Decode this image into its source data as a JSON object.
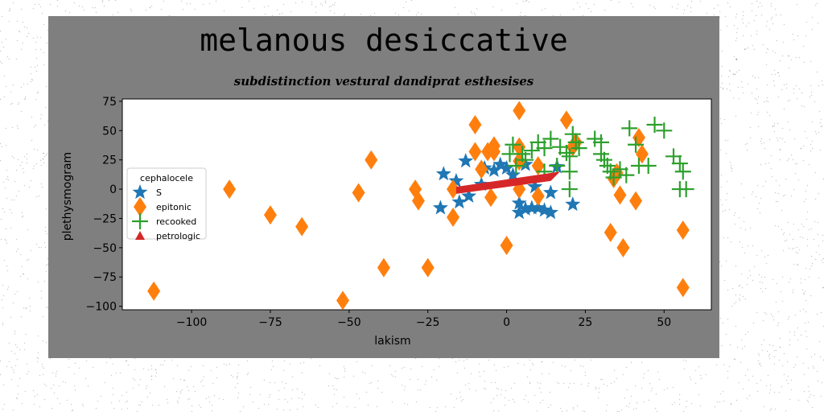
{
  "chart_data": {
    "type": "scatter",
    "title": "melanous desiccative",
    "subtitle": "subdistinction vestural dandiprat esthesises",
    "xlabel": "lakism",
    "ylabel": "plethysmogram",
    "xlim": [
      -122,
      65
    ],
    "ylim": [
      -103,
      77
    ],
    "xticks": [
      -100,
      -75,
      -50,
      -25,
      0,
      25,
      50
    ],
    "yticks": [
      75,
      50,
      25,
      0,
      -25,
      -50,
      -75,
      -100
    ],
    "grid": false,
    "legend": {
      "title": "cephalocele",
      "placement": "center-left"
    },
    "series": [
      {
        "name": "S",
        "marker": "star",
        "color": "#1f77b4",
        "points": [
          [
            -20,
            13
          ],
          [
            -16,
            7
          ],
          [
            -13,
            24
          ],
          [
            -21,
            -16
          ],
          [
            -15,
            -11
          ],
          [
            -12,
            -6
          ],
          [
            -7,
            18
          ],
          [
            -4,
            16
          ],
          [
            -2,
            21
          ],
          [
            0,
            18
          ],
          [
            2,
            12
          ],
          [
            4,
            -12
          ],
          [
            4,
            -20
          ],
          [
            6,
            21
          ],
          [
            6,
            -17
          ],
          [
            8,
            -16
          ],
          [
            10,
            -16
          ],
          [
            12,
            -18
          ],
          [
            14,
            -20
          ],
          [
            14,
            -3
          ],
          [
            16,
            19
          ],
          [
            21,
            -13
          ],
          [
            -8,
            4
          ],
          [
            9,
            2
          ]
        ]
      },
      {
        "name": "epitonic",
        "marker": "diamond",
        "color": "#ff7f0e",
        "points": [
          [
            -112,
            -87
          ],
          [
            -88,
            0
          ],
          [
            -75,
            -22
          ],
          [
            -65,
            -32
          ],
          [
            -52,
            -95
          ],
          [
            -47,
            -3
          ],
          [
            -43,
            25
          ],
          [
            -39,
            -67
          ],
          [
            -29,
            0
          ],
          [
            -28,
            -10
          ],
          [
            -25,
            -67
          ],
          [
            -17,
            -24
          ],
          [
            -17,
            0
          ],
          [
            -10,
            55
          ],
          [
            -10,
            32
          ],
          [
            -8,
            17
          ],
          [
            -6,
            32
          ],
          [
            -5,
            -7
          ],
          [
            -4,
            37
          ],
          [
            -4,
            32
          ],
          [
            0,
            -48
          ],
          [
            4,
            67
          ],
          [
            4,
            36
          ],
          [
            4,
            24
          ],
          [
            4,
            0
          ],
          [
            10,
            -6
          ],
          [
            10,
            20
          ],
          [
            19,
            59
          ],
          [
            21,
            36
          ],
          [
            22,
            40
          ],
          [
            33,
            -37
          ],
          [
            34,
            9
          ],
          [
            35,
            14
          ],
          [
            36,
            -5
          ],
          [
            37,
            -50
          ],
          [
            41,
            -10
          ],
          [
            42,
            44
          ],
          [
            43,
            30
          ],
          [
            56,
            -35
          ],
          [
            56,
            -84
          ]
        ]
      },
      {
        "name": "recooked",
        "marker": "plus",
        "color": "#2ca02c",
        "points": [
          [
            1,
            30
          ],
          [
            2,
            38
          ],
          [
            3,
            20
          ],
          [
            5,
            30
          ],
          [
            6,
            25
          ],
          [
            8,
            33
          ],
          [
            10,
            40
          ],
          [
            12,
            35
          ],
          [
            12,
            15
          ],
          [
            14,
            43
          ],
          [
            16,
            20
          ],
          [
            17,
            36
          ],
          [
            19,
            31
          ],
          [
            20,
            28
          ],
          [
            20,
            15
          ],
          [
            20,
            0
          ],
          [
            21,
            47
          ],
          [
            22,
            40
          ],
          [
            23,
            35
          ],
          [
            28,
            43
          ],
          [
            30,
            40
          ],
          [
            30,
            30
          ],
          [
            31,
            25
          ],
          [
            32,
            20
          ],
          [
            33,
            15
          ],
          [
            34,
            10
          ],
          [
            36,
            17
          ],
          [
            38,
            12
          ],
          [
            39,
            52
          ],
          [
            41,
            38
          ],
          [
            42,
            20
          ],
          [
            45,
            20
          ],
          [
            47,
            55
          ],
          [
            50,
            50
          ],
          [
            53,
            28
          ],
          [
            55,
            22
          ],
          [
            56,
            15
          ],
          [
            55,
            0
          ],
          [
            57,
            0
          ]
        ]
      },
      {
        "name": "petrologic",
        "marker": "triangle",
        "color": "#d62728",
        "band": [
          [
            -16,
            -4
          ],
          [
            14,
            7
          ],
          [
            17,
            15
          ],
          [
            -16,
            2
          ]
        ]
      }
    ]
  }
}
